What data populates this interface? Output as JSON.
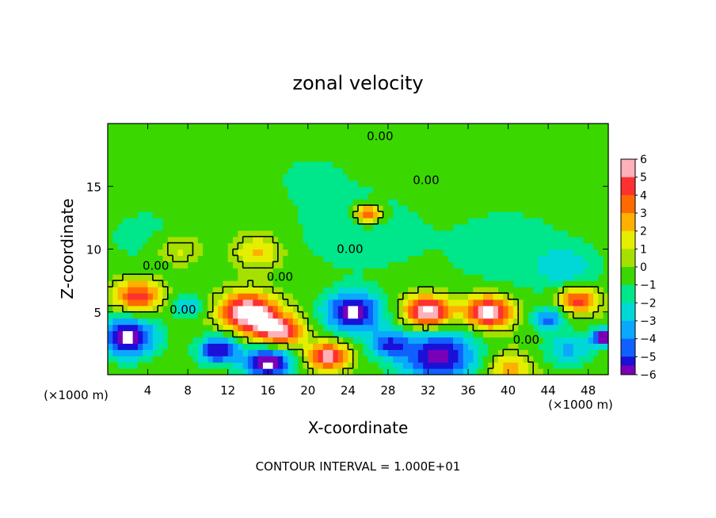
{
  "chart_data": {
    "type": "heatmap",
    "title": "zonal velocity",
    "xlabel": "X-coordinate",
    "ylabel": "Z-coordinate",
    "x_unit_left": "(×1000 m)",
    "x_unit_right": "(×1000 m)",
    "xlim": [
      0,
      50
    ],
    "ylim": [
      0,
      20
    ],
    "x_ticks": [
      4,
      8,
      12,
      16,
      20,
      24,
      28,
      32,
      36,
      40,
      44,
      48
    ],
    "y_ticks": [
      5,
      10,
      15
    ],
    "footer": "CONTOUR INTERVAL = 1.000E+01",
    "colorbar": {
      "ticks": [
        6,
        5,
        4,
        3,
        2,
        1,
        0,
        -1,
        -2,
        -3,
        -4,
        -5,
        -6
      ],
      "colors": [
        "#ffb0b8",
        "#ff3030",
        "#ff6a00",
        "#ffb000",
        "#e6ee00",
        "#a6e000",
        "#3ad800",
        "#00e68a",
        "#00d8d8",
        "#0aa8ff",
        "#1060ff",
        "#1a10d8",
        "#7a00b8"
      ]
    },
    "contour_labels": [
      {
        "text": "0.00",
        "x": 27.2,
        "y": 18.8
      },
      {
        "text": "0.00",
        "x": 31.8,
        "y": 15.3
      },
      {
        "text": "0.00",
        "x": 4.8,
        "y": 8.5
      },
      {
        "text": "0.00",
        "x": 17.2,
        "y": 7.6
      },
      {
        "text": "0.00",
        "x": 24.2,
        "y": 9.8
      },
      {
        "text": "0.00",
        "x": 7.5,
        "y": 5.0
      },
      {
        "text": "0.00",
        "x": 41.8,
        "y": 2.6
      }
    ],
    "field_blobs": [
      {
        "x": 25,
        "y": 11.5,
        "r": 8,
        "v": -1.5
      },
      {
        "x": 4,
        "y": 11,
        "r": 7,
        "v": -1
      },
      {
        "x": 40,
        "y": 10,
        "r": 9,
        "v": -1.2
      },
      {
        "x": 20,
        "y": 16,
        "r": 6,
        "v": -0.8
      },
      {
        "x": 26,
        "y": 12.8,
        "r": 1.8,
        "v": 5.5
      },
      {
        "x": 15,
        "y": 9.8,
        "r": 3,
        "v": 2.5
      },
      {
        "x": 7,
        "y": 10,
        "r": 3,
        "v": 2
      },
      {
        "x": 46,
        "y": 8.5,
        "r": 4,
        "v": -2
      },
      {
        "x": 3,
        "y": 6.3,
        "r": 3,
        "v": 5
      },
      {
        "x": 14,
        "y": 5,
        "r": 3.5,
        "v": 7
      },
      {
        "x": 17,
        "y": 3.5,
        "r": 3,
        "v": 6
      },
      {
        "x": 24.5,
        "y": 5,
        "r": 3.5,
        "v": -7
      },
      {
        "x": 32,
        "y": 5,
        "r": 3,
        "v": 7
      },
      {
        "x": 38,
        "y": 5,
        "r": 3,
        "v": 7
      },
      {
        "x": 2,
        "y": 3,
        "r": 3.5,
        "v": -7
      },
      {
        "x": 11,
        "y": 2,
        "r": 2.5,
        "v": -6
      },
      {
        "x": 16,
        "y": 1,
        "r": 3,
        "v": -7
      },
      {
        "x": 22,
        "y": 1.5,
        "r": 2.5,
        "v": 6
      },
      {
        "x": 33,
        "y": 1.5,
        "r": 5,
        "v": -6
      },
      {
        "x": 40,
        "y": 0.5,
        "r": 3,
        "v": 3
      },
      {
        "x": 46,
        "y": 2,
        "r": 3,
        "v": -3
      },
      {
        "x": 49.5,
        "y": 3,
        "r": 1.5,
        "v": -7
      },
      {
        "x": 47,
        "y": 6,
        "r": 2.5,
        "v": 5
      },
      {
        "x": 8,
        "y": 5.5,
        "r": 2,
        "v": -3
      },
      {
        "x": 28,
        "y": 2.5,
        "r": 2.5,
        "v": -4
      },
      {
        "x": 44,
        "y": 4.5,
        "r": 2,
        "v": -4
      }
    ]
  }
}
